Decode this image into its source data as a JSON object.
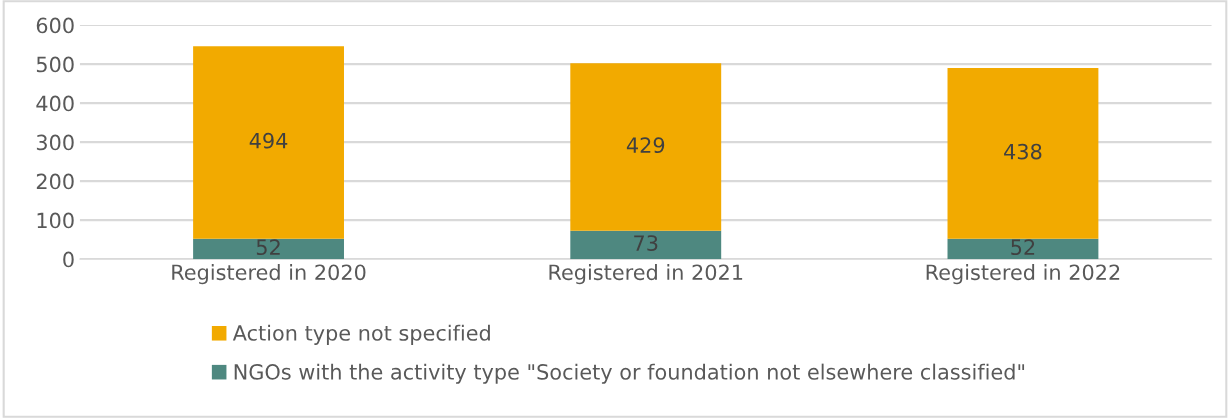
{
  "chart_data": {
    "type": "bar",
    "stacked": true,
    "categories": [
      "Registered in 2020",
      "Registered in 2021",
      "Registered in 2022"
    ],
    "series": [
      {
        "name": "NGOs with the activity type \"Society or foundation not elsewhere classified\"",
        "color": "#4e8880",
        "values": [
          52,
          73,
          52
        ]
      },
      {
        "name": "Action type not specified",
        "color": "#f2aa00",
        "values": [
          494,
          429,
          438
        ]
      }
    ],
    "ylim": [
      0,
      600
    ],
    "yticks": [
      0,
      100,
      200,
      300,
      400,
      500,
      600
    ],
    "grid": "y",
    "legend": "bottom",
    "data_labels": true
  }
}
